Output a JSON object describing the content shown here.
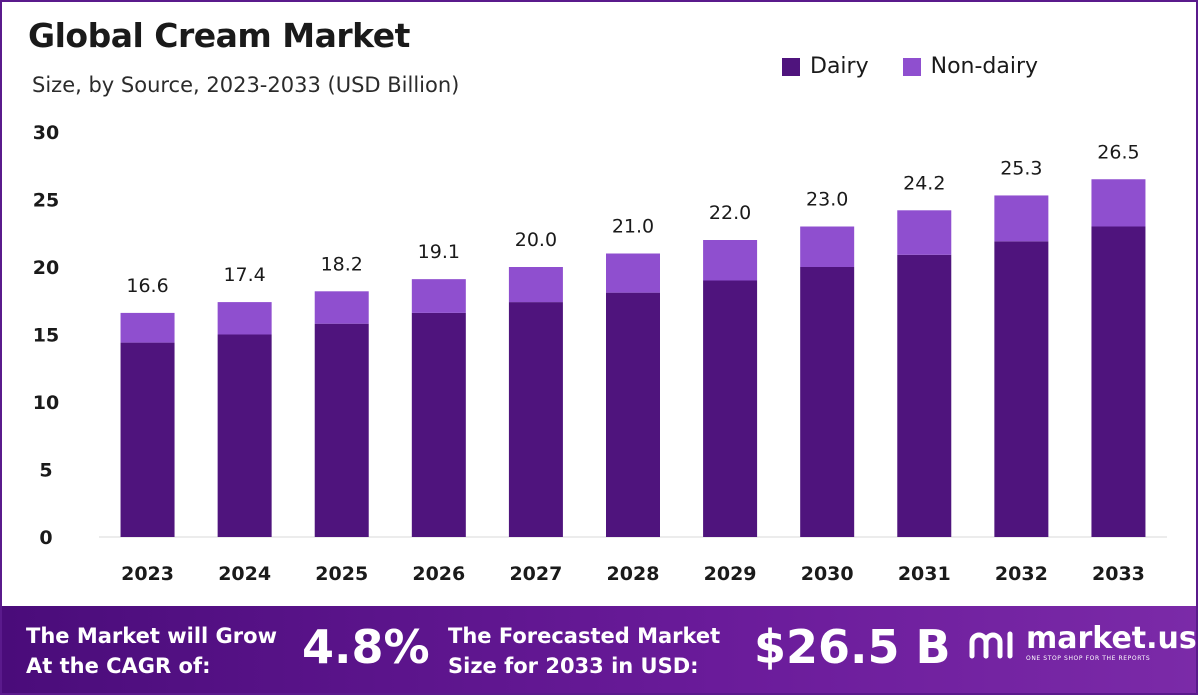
{
  "colors": {
    "dairy": "#4f147d",
    "non_dairy": "#8f4fcf",
    "footer_start": "#4a0c7a",
    "footer_end": "#7b2aa8"
  },
  "legend": {
    "dairy_label": "Dairy",
    "non_dairy_label": "Non-dairy"
  },
  "chart_data": {
    "type": "bar",
    "stacked": true,
    "title": "Global Cream Market",
    "subtitle": "Size, by Source, 2023-2033 (USD Billion)",
    "categories": [
      "2023",
      "2024",
      "2025",
      "2026",
      "2027",
      "2028",
      "2029",
      "2030",
      "2031",
      "2032",
      "2033"
    ],
    "series": [
      {
        "name": "Dairy",
        "values": [
          14.4,
          15.0,
          15.8,
          16.6,
          17.4,
          18.1,
          19.0,
          20.0,
          20.9,
          21.9,
          23.0
        ]
      },
      {
        "name": "Non-dairy",
        "values": [
          2.2,
          2.4,
          2.4,
          2.5,
          2.6,
          2.9,
          3.0,
          3.0,
          3.3,
          3.4,
          3.5
        ]
      }
    ],
    "totals": [
      "16.6",
      "17.4",
      "18.2",
      "19.1",
      "20.0",
      "21.0",
      "22.0",
      "23.0",
      "24.2",
      "25.3",
      "26.5"
    ],
    "ylim": [
      0,
      30
    ],
    "yticks": [
      "0",
      "5",
      "10",
      "15",
      "20",
      "25",
      "30"
    ],
    "xlabel": "",
    "ylabel": "",
    "legend_position": "top-right",
    "grid": false
  },
  "footer": {
    "cagr_label_line1": "The Market will Grow",
    "cagr_label_line2": "At the CAGR of:",
    "cagr_value": "4.8%",
    "forecast_label_line1": "The Forecasted Market",
    "forecast_label_line2": "Size for 2033 in USD:",
    "forecast_value": "$26.5 B",
    "brand_name": "market.us",
    "brand_tagline": "ONE STOP SHOP FOR THE REPORTS"
  }
}
